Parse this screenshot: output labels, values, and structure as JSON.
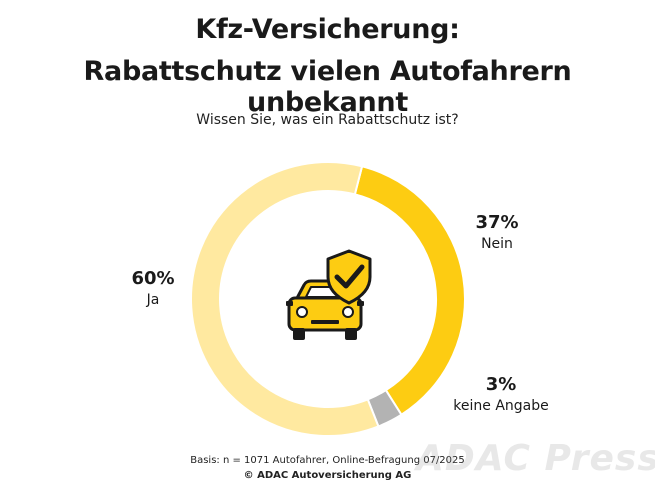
{
  "title_line1": "Kfz-Versicherung:",
  "title_line2": "Rabattschutz vielen Autofahrern unbekannt",
  "chart_data": {
    "type": "pie",
    "subtitle": "Wissen Sie, was ein Rabattschutz ist?",
    "slices": [
      {
        "label": "Nein",
        "value": 37,
        "value_label": "37%",
        "color": "#fdcc12"
      },
      {
        "label": "keine Angabe",
        "value": 3,
        "value_label": "3%",
        "color": "#b3b3b3"
      },
      {
        "label": "Ja",
        "value": 60,
        "value_label": "60%",
        "color": "#ffe9a0"
      }
    ],
    "donut": true,
    "center_icon": "car-with-shield-checkmark-icon"
  },
  "footer": {
    "basis": "Basis: n = 1071 Autofahrer, Online-Befragung 07/2025",
    "copyright": "© ADAC Autoversicherung AG"
  },
  "watermark": "ADAC Presse"
}
